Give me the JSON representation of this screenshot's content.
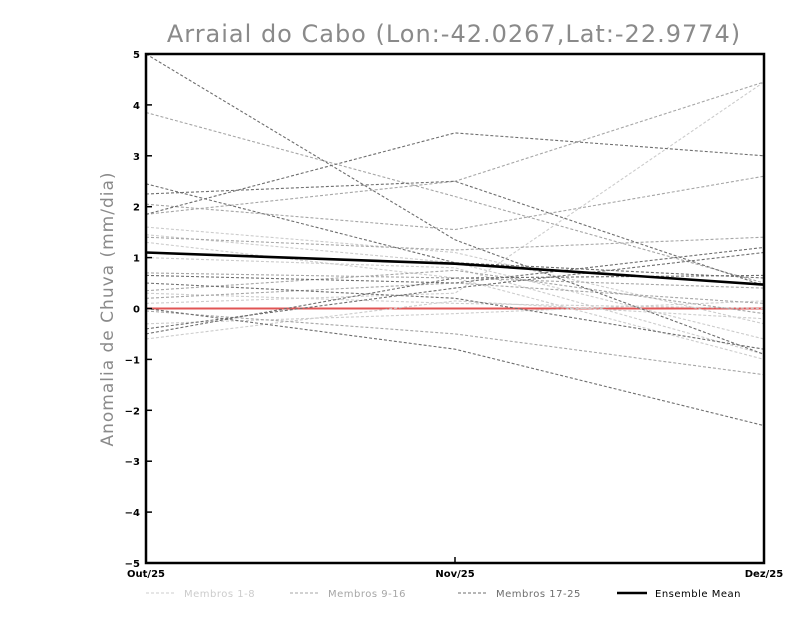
{
  "chart_data": {
    "type": "line",
    "title": "Arraial do Cabo (Lon:-42.0267,Lat:-22.9774)",
    "ylabel": "Anomalia de Chuva (mm/dia)",
    "xlabel": "",
    "categories": [
      "Out/25",
      "Nov/25",
      "Dez/25"
    ],
    "ylim": [
      -5,
      5
    ],
    "yticks": [
      -5,
      -4,
      -3,
      -2,
      -1,
      0,
      1,
      2,
      3,
      4,
      5
    ],
    "groups": [
      {
        "name": "Membros 1-8",
        "color": "#cccccc",
        "members": [
          [
            1.6,
            1.1,
            -0.3
          ],
          [
            1.45,
            0.9,
            -0.6
          ],
          [
            1.3,
            0.6,
            -1.0
          ],
          [
            0.1,
            0.3,
            4.45
          ],
          [
            -0.6,
            0.15,
            -0.2
          ],
          [
            0.3,
            0.1,
            0.0
          ],
          [
            1.0,
            0.8,
            -0.9
          ],
          [
            -0.3,
            -0.1,
            0.15
          ]
        ]
      },
      {
        "name": "Membros 9-16",
        "color": "#a6a6a6",
        "members": [
          [
            3.85,
            2.2,
            0.5
          ],
          [
            2.05,
            1.55,
            2.6
          ],
          [
            1.85,
            2.5,
            4.45
          ],
          [
            1.4,
            1.15,
            1.4
          ],
          [
            0.7,
            0.6,
            0.4
          ],
          [
            0.2,
            0.5,
            0.1
          ],
          [
            -0.05,
            -0.5,
            -1.3
          ],
          [
            0.35,
            0.75,
            -0.1
          ]
        ]
      },
      {
        "name": "Membros 17-25",
        "color": "#6e6e6e",
        "members": [
          [
            5.0,
            1.35,
            -0.9
          ],
          [
            2.45,
            0.9,
            0.6
          ],
          [
            2.25,
            2.5,
            0.45
          ],
          [
            1.85,
            3.45,
            3.0
          ],
          [
            0.65,
            0.5,
            1.2
          ],
          [
            0.5,
            0.2,
            -0.8
          ],
          [
            -0.5,
            0.6,
            0.65
          ],
          [
            -0.4,
            0.4,
            1.1
          ],
          [
            0.0,
            -0.8,
            -2.3
          ]
        ]
      }
    ],
    "ensemble_mean": {
      "name": "Ensemble Mean",
      "color": "#000000",
      "values": [
        1.1,
        0.88,
        0.47
      ]
    },
    "zero_line": {
      "value": 0,
      "color": "#e05555"
    },
    "legend_position": "bottom",
    "grid": false
  }
}
